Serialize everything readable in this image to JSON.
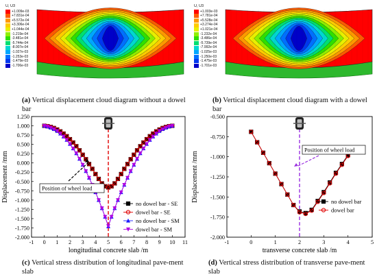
{
  "panel_a": {
    "legend_title": "U, U3",
    "legend_values": [
      "+1.009e-03",
      "+7.831e-04",
      "+5.572e-04",
      "+3.306e-04",
      "+1.044e-04",
      "-1.219e-04",
      "-3.481e-04",
      "-5.744e-04",
      "-8.007e-04",
      "-1.027e-03",
      "-1.253e-03",
      "-1.479e-03",
      "-1.706e-03"
    ],
    "caption_letter": "(a)",
    "caption_text": " Vertical displacement cloud diagram without a dowel bar"
  },
  "panel_b": {
    "legend_title": "U, U3",
    "legend_values": [
      "+1.003e-03",
      "+7.781e-04",
      "+5.528e-04",
      "+3.274e-04",
      "+1.021e-04",
      "-1.232e-04",
      "-3.486e-04",
      "-5.739e-04",
      "-7.992e-04",
      "-1.025e-03",
      "-1.250e-03",
      "-1.475e-03",
      "-1.701e-03"
    ],
    "caption_letter": "(b)",
    "caption_text": " Vertical displacement cloud diagram with a dowel bar"
  },
  "legend_colors": [
    "#ff0000",
    "#ff5a00",
    "#ff9900",
    "#ffcc00",
    "#e8f000",
    "#8ff000",
    "#2fe000",
    "#00e070",
    "#00d8d0",
    "#00a8ff",
    "#0070ff",
    "#0038f0",
    "#0000c8"
  ],
  "slab_colors": {
    "slab_base": "#2db82d",
    "gray_wireframe": "#bdbdbd"
  },
  "chart_c_caption_letter": "(c)",
  "chart_c_caption_text": " Vertical stress distribution of longitudinal pave-ment slab",
  "chart_d_caption_letter": "(d)",
  "chart_d_caption_text": " Vertical stress distribution of transverse pave-ment slab",
  "chart_data": [
    {
      "type": "line",
      "xlabel": "longitudinal concrete  slab /m",
      "ylabel": "Displacement /mm",
      "xlim": [
        -1,
        11
      ],
      "ylim": [
        -2.0,
        1.25
      ],
      "xticks": [
        "-1",
        "0",
        "1",
        "2",
        "3",
        "4",
        "5",
        "6",
        "7",
        "8",
        "9",
        "10",
        "11"
      ],
      "yticks": [
        "-2.000",
        "-1.750",
        "-1.500",
        "-1.250",
        "-1.000",
        "-0.750",
        "-0.500",
        "-0.250",
        "0.000",
        "0.250",
        "0.500",
        "0.750",
        "1.000",
        "1.250"
      ],
      "annotation": "Position of wheel load",
      "wheel_x": 5,
      "legend_position": "bottom-right",
      "series": [
        {
          "name": "no dowel bar - SE",
          "color": "#000000",
          "marker": "square",
          "x": [
            0,
            0.25,
            0.5,
            0.75,
            1,
            1.25,
            1.5,
            1.75,
            2,
            2.25,
            2.5,
            2.75,
            3,
            3.25,
            3.5,
            3.75,
            4,
            4.25,
            4.5,
            4.75,
            5,
            5.25,
            5.5,
            5.75,
            6,
            6.25,
            6.5,
            6.75,
            7,
            7.25,
            7.5,
            7.75,
            8,
            8.25,
            8.5,
            8.75,
            9,
            9.25,
            9.5,
            9.75,
            10
          ],
          "values": [
            1.0,
            0.99,
            0.97,
            0.94,
            0.9,
            0.85,
            0.79,
            0.72,
            0.64,
            0.55,
            0.45,
            0.34,
            0.22,
            0.1,
            -0.03,
            -0.16,
            -0.3,
            -0.43,
            -0.55,
            -0.63,
            -0.66,
            -0.63,
            -0.55,
            -0.43,
            -0.3,
            -0.16,
            -0.03,
            0.1,
            0.22,
            0.34,
            0.45,
            0.55,
            0.64,
            0.72,
            0.79,
            0.85,
            0.9,
            0.94,
            0.97,
            0.99,
            1.0
          ]
        },
        {
          "name": "dowel bar - SE",
          "color": "#e00000",
          "marker": "circle",
          "x": [
            0,
            0.25,
            0.5,
            0.75,
            1,
            1.25,
            1.5,
            1.75,
            2,
            2.25,
            2.5,
            2.75,
            3,
            3.25,
            3.5,
            3.75,
            4,
            4.25,
            4.5,
            4.75,
            5,
            5.25,
            5.5,
            5.75,
            6,
            6.25,
            6.5,
            6.75,
            7,
            7.25,
            7.5,
            7.75,
            8,
            8.25,
            8.5,
            8.75,
            9,
            9.25,
            9.5,
            9.75,
            10
          ],
          "values": [
            1.0,
            0.99,
            0.97,
            0.94,
            0.9,
            0.85,
            0.79,
            0.72,
            0.64,
            0.55,
            0.45,
            0.34,
            0.22,
            0.1,
            -0.03,
            -0.16,
            -0.3,
            -0.43,
            -0.55,
            -0.63,
            -0.66,
            -0.63,
            -0.55,
            -0.43,
            -0.3,
            -0.16,
            -0.03,
            0.1,
            0.22,
            0.34,
            0.45,
            0.55,
            0.64,
            0.72,
            0.79,
            0.85,
            0.9,
            0.94,
            0.97,
            0.99,
            1.0
          ]
        },
        {
          "name": "no dowel bar - SM",
          "color": "#1a1aff",
          "marker": "triangle-up",
          "x": [
            0,
            0.25,
            0.5,
            0.75,
            1,
            1.25,
            1.5,
            1.75,
            2,
            2.25,
            2.5,
            2.75,
            3,
            3.25,
            3.5,
            3.75,
            4,
            4.25,
            4.5,
            4.75,
            5,
            5.25,
            5.5,
            5.75,
            6,
            6.25,
            6.5,
            6.75,
            7,
            7.25,
            7.5,
            7.75,
            8,
            8.25,
            8.5,
            8.75,
            9,
            9.25,
            9.5,
            9.75,
            10
          ],
          "values": [
            1.0,
            0.98,
            0.95,
            0.91,
            0.86,
            0.79,
            0.71,
            0.62,
            0.51,
            0.39,
            0.26,
            0.11,
            -0.05,
            -0.22,
            -0.4,
            -0.59,
            -0.79,
            -1.0,
            -1.22,
            -1.45,
            -1.71,
            -1.45,
            -1.22,
            -1.0,
            -0.79,
            -0.59,
            -0.4,
            -0.22,
            -0.05,
            0.11,
            0.26,
            0.39,
            0.51,
            0.62,
            0.71,
            0.79,
            0.86,
            0.91,
            0.95,
            0.98,
            1.0
          ]
        },
        {
          "name": "dowel bar - SM",
          "color": "#b000e0",
          "marker": "triangle-down",
          "x": [
            0,
            0.25,
            0.5,
            0.75,
            1,
            1.25,
            1.5,
            1.75,
            2,
            2.25,
            2.5,
            2.75,
            3,
            3.25,
            3.5,
            3.75,
            4,
            4.25,
            4.5,
            4.75,
            5,
            5.25,
            5.5,
            5.75,
            6,
            6.25,
            6.5,
            6.75,
            7,
            7.25,
            7.5,
            7.75,
            8,
            8.25,
            8.5,
            8.75,
            9,
            9.25,
            9.5,
            9.75,
            10
          ],
          "values": [
            1.0,
            0.98,
            0.95,
            0.91,
            0.86,
            0.79,
            0.71,
            0.62,
            0.51,
            0.39,
            0.26,
            0.11,
            -0.05,
            -0.22,
            -0.4,
            -0.59,
            -0.79,
            -1.0,
            -1.22,
            -1.45,
            -1.7,
            -1.45,
            -1.22,
            -1.0,
            -0.79,
            -0.59,
            -0.4,
            -0.22,
            -0.05,
            0.11,
            0.26,
            0.39,
            0.51,
            0.62,
            0.71,
            0.79,
            0.86,
            0.91,
            0.95,
            0.98,
            1.0
          ]
        }
      ]
    },
    {
      "type": "line",
      "xlabel": "transverse concrete  slab /m",
      "ylabel": "Displacement /mm",
      "xlim": [
        -1,
        5
      ],
      "ylim": [
        -2.0,
        -0.5
      ],
      "xticks": [
        "-1",
        "0",
        "1",
        "2",
        "3",
        "4",
        "5"
      ],
      "yticks": [
        "-2.000",
        "-1.750",
        "-1.500",
        "-1.250",
        "-1.000",
        "-0.750",
        "-0.500"
      ],
      "annotation": "Position of wheel load",
      "wheel_x": 2,
      "legend_position": "bottom-right",
      "series": [
        {
          "name": "no dowel bar",
          "color": "#000000",
          "marker": "square",
          "x": [
            0,
            0.25,
            0.5,
            0.75,
            1,
            1.25,
            1.5,
            1.75,
            2,
            2.25,
            2.5,
            2.75,
            3,
            3.25,
            3.5,
            3.75,
            4
          ],
          "values": [
            -0.69,
            -0.82,
            -0.95,
            -1.08,
            -1.21,
            -1.34,
            -1.47,
            -1.6,
            -1.68,
            -1.7,
            -1.66,
            -1.55,
            -1.44,
            -1.32,
            -1.2,
            -1.09,
            -0.98
          ]
        },
        {
          "name": "dowel bar",
          "color": "#e00000",
          "marker": "circle",
          "x": [
            0,
            0.25,
            0.5,
            0.75,
            1,
            1.25,
            1.5,
            1.75,
            2,
            2.25,
            2.5,
            2.75,
            3,
            3.25,
            3.5,
            3.75,
            4
          ],
          "values": [
            -0.69,
            -0.82,
            -0.95,
            -1.08,
            -1.21,
            -1.34,
            -1.47,
            -1.6,
            -1.69,
            -1.71,
            -1.67,
            -1.56,
            -1.45,
            -1.33,
            -1.21,
            -1.1,
            -0.99
          ]
        }
      ]
    }
  ]
}
